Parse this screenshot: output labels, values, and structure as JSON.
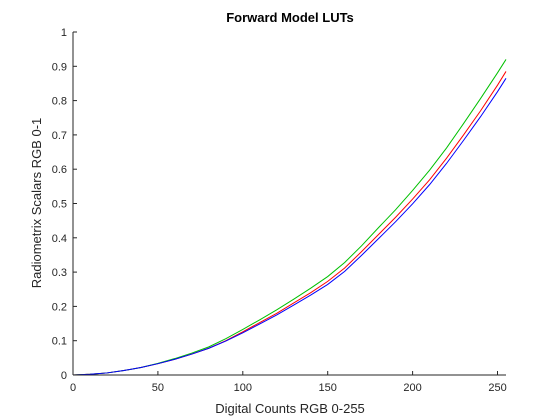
{
  "chart_data": {
    "type": "line",
    "title": "Forward Model LUTs",
    "xlabel": "Digital Counts RGB 0-255",
    "ylabel": "Radiometrix Scalars RGB 0-1",
    "xlim": [
      0,
      255
    ],
    "ylim": [
      0,
      1
    ],
    "xticks": [
      "0",
      "50",
      "100",
      "150",
      "200",
      "250"
    ],
    "yticks": [
      "0",
      "0.1",
      "0.2",
      "0.3",
      "0.4",
      "0.5",
      "0.6",
      "0.7",
      "0.8",
      "0.9",
      "1"
    ],
    "grid": false,
    "series": [
      {
        "color": "#ff0000",
        "x": [
          0,
          10,
          20,
          30,
          40,
          50,
          60,
          70,
          80,
          90,
          100,
          110,
          120,
          130,
          140,
          150,
          160,
          170,
          180,
          190,
          200,
          210,
          220,
          230,
          240,
          250,
          255
        ],
        "y": [
          0,
          0.002,
          0.006,
          0.013,
          0.022,
          0.033,
          0.046,
          0.061,
          0.078,
          0.1,
          0.126,
          0.153,
          0.18,
          0.21,
          0.24,
          0.273,
          0.312,
          0.36,
          0.41,
          0.46,
          0.513,
          0.569,
          0.632,
          0.7,
          0.77,
          0.845,
          0.885
        ]
      },
      {
        "color": "#00c000",
        "x": [
          0,
          10,
          20,
          30,
          40,
          50,
          60,
          70,
          80,
          90,
          100,
          110,
          120,
          130,
          140,
          150,
          160,
          170,
          180,
          190,
          200,
          210,
          220,
          230,
          240,
          250,
          255
        ],
        "y": [
          0,
          0.002,
          0.006,
          0.013,
          0.022,
          0.034,
          0.048,
          0.064,
          0.082,
          0.106,
          0.133,
          0.161,
          0.19,
          0.221,
          0.253,
          0.287,
          0.328,
          0.377,
          0.43,
          0.482,
          0.538,
          0.597,
          0.662,
          0.733,
          0.806,
          0.881,
          0.92
        ]
      },
      {
        "color": "#0000ff",
        "x": [
          0,
          10,
          20,
          30,
          40,
          50,
          60,
          70,
          80,
          90,
          100,
          110,
          120,
          130,
          140,
          150,
          160,
          170,
          180,
          190,
          200,
          210,
          220,
          230,
          240,
          250,
          255
        ],
        "y": [
          0,
          0.002,
          0.006,
          0.013,
          0.022,
          0.033,
          0.046,
          0.061,
          0.078,
          0.099,
          0.123,
          0.149,
          0.175,
          0.204,
          0.233,
          0.264,
          0.302,
          0.349,
          0.398,
          0.447,
          0.499,
          0.555,
          0.617,
          0.684,
          0.753,
          0.826,
          0.865
        ]
      }
    ]
  }
}
